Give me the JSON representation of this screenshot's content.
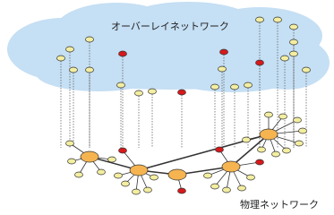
{
  "overlay_label": "オーバーレイネットワーク",
  "physical_label": "物理ネットワーク"
}
